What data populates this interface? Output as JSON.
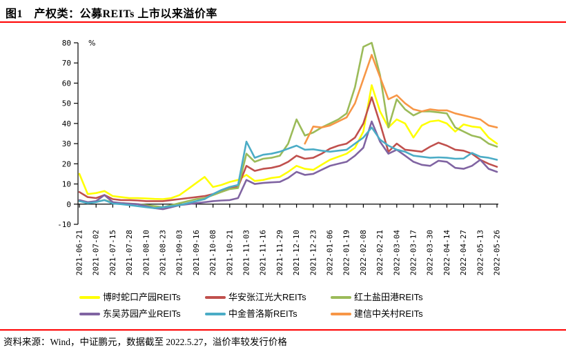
{
  "title": "图1　产权类：公募REITs 上市以来溢价率",
  "footer": "资料来源：Wind，中证鹏元，数据截至 2022.5.27，溢价率较发行价格",
  "accent_rule_color": "#FF0000",
  "axis_color": "#000000",
  "chart_data": {
    "type": "line",
    "unit_label": "%",
    "ylim": [
      -10,
      80
    ],
    "y_ticks": [
      80,
      70,
      60,
      50,
      40,
      30,
      20,
      10,
      0,
      -10
    ],
    "grid": false,
    "legend_position": "bottom",
    "x_sampling": "uniform over trading days, 2 samples per labeled tick",
    "x_tick_labels": [
      "2021-06-21",
      "2021-07-02",
      "2021-07-15",
      "2021-07-28",
      "2021-08-10",
      "2021-08-23",
      "2021-09-03",
      "2021-09-16",
      "2021-10-08",
      "2021-10-21",
      "2021-11-03",
      "2021-11-16",
      "2021-11-29",
      "2021-12-10",
      "2021-12-23",
      "2022-01-06",
      "2022-01-19",
      "2022-02-08",
      "2022-02-21",
      "2022-03-04",
      "2022-03-17",
      "2022-03-30",
      "2022-04-14",
      "2022-04-27",
      "2022-05-13",
      "2022-05-26"
    ],
    "series": [
      {
        "name": "博时蛇口产园REITs",
        "color": "#FFFF00",
        "values": [
          15,
          5,
          5.5,
          6.5,
          4,
          3.5,
          3,
          3,
          2.8,
          2.6,
          2.5,
          3,
          4.5,
          7.5,
          10.5,
          13.5,
          8.5,
          9.5,
          11,
          12,
          14.5,
          11.5,
          12,
          13,
          13.5,
          16,
          19,
          17.5,
          17,
          19.5,
          22,
          23.5,
          25,
          28,
          36,
          59,
          46,
          38,
          42,
          40,
          33,
          39,
          41,
          41.5,
          40,
          36,
          39.5,
          38.5,
          38,
          33,
          30
        ]
      },
      {
        "name": "华安张江光大REITs",
        "color": "#C0504D",
        "values": [
          6,
          3.5,
          3,
          4.5,
          2.5,
          2,
          2,
          1.8,
          1.5,
          1.5,
          1.5,
          2,
          2.5,
          3,
          3.5,
          4,
          5,
          6.5,
          8,
          8.5,
          19,
          16.5,
          17.5,
          18,
          19,
          21,
          24,
          22.5,
          23,
          25,
          27.5,
          29,
          30,
          33,
          40,
          53,
          40,
          26,
          30,
          27,
          26.5,
          26,
          28.5,
          30.5,
          29,
          27,
          26.5,
          25,
          22,
          20,
          18.5
        ]
      },
      {
        "name": "红土盐田港REITs",
        "color": "#9BBB59",
        "values": [
          1.5,
          1,
          1.2,
          2,
          0.8,
          0.5,
          0.3,
          0,
          -0.5,
          -1,
          -1.5,
          -0.5,
          0.5,
          1.5,
          2.5,
          3,
          4.5,
          6,
          7.5,
          8,
          25,
          21,
          22.5,
          23,
          24,
          30,
          42,
          34,
          35.5,
          38,
          40,
          42,
          45,
          58,
          78,
          80,
          64,
          38,
          52,
          47,
          44,
          46,
          46,
          45.5,
          45,
          38,
          36,
          34,
          33,
          30,
          28.5
        ]
      },
      {
        "name": "东吴苏园产业REITs",
        "color": "#8064A2",
        "values": [
          2,
          1,
          1.5,
          4.5,
          1,
          0.5,
          0.2,
          0,
          -1,
          -2,
          -2.5,
          -1.5,
          -0.5,
          0,
          0.5,
          1,
          1.5,
          1.8,
          2,
          3,
          12,
          10,
          10.5,
          10.8,
          11,
          13,
          16,
          14.5,
          15,
          17,
          19,
          20,
          21,
          24,
          28,
          41,
          31,
          25,
          27,
          24,
          21,
          19.5,
          19,
          21.5,
          21,
          18,
          17.5,
          19,
          22,
          17.5,
          16
        ]
      },
      {
        "name": "中金普洛斯REITs",
        "color": "#4BACC6",
        "values": [
          1.5,
          0.5,
          1,
          2,
          0.3,
          0,
          -0.5,
          -1,
          -1.5,
          -2,
          -1.5,
          -1,
          -0.5,
          0.5,
          1.5,
          2.5,
          5,
          7,
          8.5,
          9.5,
          31,
          23,
          24.5,
          25,
          26,
          27.5,
          29,
          27,
          27.2,
          26.5,
          26,
          26.5,
          27,
          30,
          33,
          38,
          32,
          29,
          27,
          26,
          24,
          23.5,
          23,
          23.2,
          23,
          22.5,
          22.6,
          25.4,
          23.5,
          23,
          22
        ]
      },
      {
        "name": "建信中关村REITs",
        "color": "#F79646",
        "values": [
          null,
          null,
          null,
          null,
          null,
          null,
          null,
          null,
          null,
          null,
          null,
          null,
          null,
          null,
          null,
          null,
          null,
          null,
          null,
          null,
          null,
          null,
          null,
          null,
          null,
          null,
          null,
          30,
          38.5,
          38,
          39,
          41,
          43,
          50,
          62,
          74,
          63,
          52,
          54,
          50,
          47,
          46,
          47,
          46.5,
          46.5,
          45,
          44,
          43,
          42,
          39,
          38
        ]
      }
    ]
  }
}
